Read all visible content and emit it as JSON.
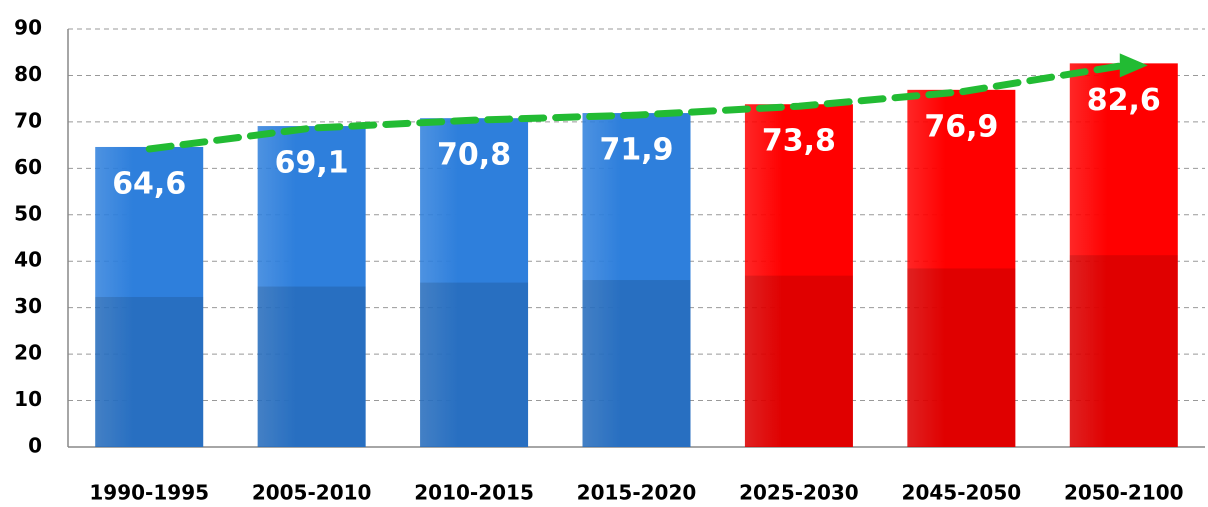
{
  "chart_data": {
    "type": "bar",
    "categories": [
      "1990-1995",
      "2005-2010",
      "2010-2015",
      "2015-2020",
      "2025-2030",
      "2045-2050",
      "2050-2100"
    ],
    "values": [
      64.6,
      69.1,
      70.8,
      71.9,
      73.8,
      76.9,
      82.6
    ],
    "value_labels": [
      "64,6",
      "69,1",
      "70,8",
      "71,9",
      "73,8",
      "76,9",
      "82,6"
    ],
    "colors": [
      "#2e7fdc",
      "#2e7fdc",
      "#2e7fdc",
      "#2e7fdc",
      "#ff0000",
      "#ff0000",
      "#ff0000"
    ],
    "trend_color": "#22bb33",
    "ylim": [
      0,
      90
    ],
    "yticks": [
      0,
      10,
      20,
      30,
      40,
      50,
      60,
      70,
      80,
      90
    ],
    "grid": true
  }
}
